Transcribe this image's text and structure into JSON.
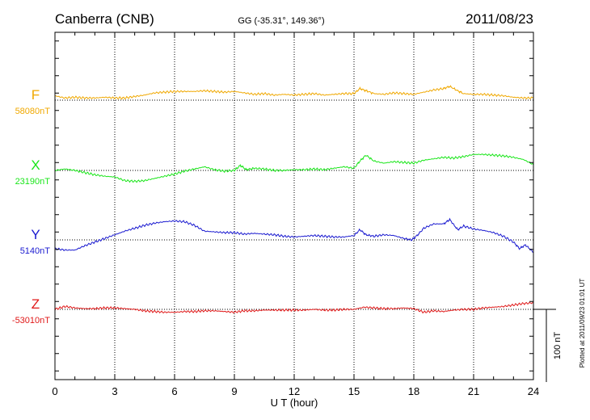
{
  "chart_data": {
    "type": "line",
    "title": "Canberra (CNB)",
    "subtitle": "GG (-35.31°, 149.36°)",
    "date": "2011/08/23",
    "xlabel": "U T (hour)",
    "xlim": [
      0,
      24
    ],
    "xticks": [
      "0",
      "3",
      "6",
      "9",
      "12",
      "15",
      "18",
      "21",
      "24"
    ],
    "scale_label": "100 nT",
    "scale_nT": 100,
    "plotted_note": "Plotted at 2011/09/23 01:01  UT",
    "series": [
      {
        "name": "F",
        "baseline_label": "58080nT",
        "baseline_nT": 58080,
        "color": "#f0a800",
        "x": [
          0,
          0.5,
          1,
          1.5,
          2,
          2.5,
          3,
          3.5,
          4,
          4.5,
          5,
          5.5,
          6,
          6.5,
          7,
          7.5,
          8,
          8.5,
          9,
          9.5,
          10,
          10.5,
          11,
          11.5,
          12,
          12.5,
          13,
          13.5,
          14,
          14.5,
          15,
          15.3,
          15.6,
          16,
          16.5,
          17,
          17.5,
          18,
          18.5,
          19,
          19.5,
          19.8,
          20.2,
          20.5,
          21,
          21.5,
          22,
          22.5,
          23,
          23.5,
          24
        ],
        "values": [
          6,
          3,
          4,
          3,
          3,
          4,
          3,
          3,
          5,
          7,
          10,
          11,
          12,
          12,
          12,
          13,
          12,
          11,
          12,
          10,
          8,
          9,
          7,
          8,
          7,
          8,
          9,
          7,
          8,
          9,
          9,
          16,
          13,
          9,
          8,
          10,
          9,
          8,
          11,
          14,
          16,
          19,
          13,
          9,
          8,
          8,
          7,
          6,
          4,
          3,
          3
        ]
      },
      {
        "name": "X",
        "baseline_label": "23190nT",
        "baseline_nT": 23190,
        "color": "#19e619",
        "x": [
          0,
          0.5,
          1,
          1.5,
          2,
          2.5,
          3,
          3.5,
          4,
          4.5,
          5,
          5.5,
          6,
          6.5,
          7,
          7.5,
          8,
          8.5,
          9,
          9.3,
          9.6,
          10,
          10.5,
          11,
          11.5,
          12,
          12.5,
          13,
          13.5,
          14,
          14.5,
          15,
          15.3,
          15.6,
          16,
          16.5,
          17,
          17.5,
          18,
          18.5,
          19,
          19.5,
          20,
          20.5,
          21,
          21.5,
          22,
          22.5,
          23,
          23.5,
          24
        ],
        "values": [
          0,
          2,
          0,
          -3,
          -6,
          -8,
          -9,
          -14,
          -15,
          -14,
          -11,
          -8,
          -5,
          -1,
          2,
          5,
          1,
          -1,
          0,
          7,
          1,
          3,
          2,
          0,
          0,
          1,
          1,
          2,
          1,
          3,
          5,
          3,
          13,
          21,
          13,
          10,
          12,
          11,
          10,
          14,
          16,
          18,
          17,
          19,
          22,
          22,
          21,
          20,
          18,
          15,
          8
        ]
      },
      {
        "name": "Y",
        "baseline_label": "5140nT",
        "baseline_nT": 5140,
        "color": "#1a1ad0",
        "x": [
          0,
          0.5,
          1,
          1.5,
          2,
          2.5,
          3,
          3.5,
          4,
          4.5,
          5,
          5.5,
          6,
          6.5,
          7,
          7.5,
          8,
          8.5,
          9,
          9.5,
          10,
          10.5,
          11,
          11.5,
          12,
          12.5,
          13,
          13.5,
          14,
          14.5,
          15,
          15.3,
          15.6,
          16,
          16.5,
          17,
          17.5,
          17.9,
          18.2,
          18.5,
          19,
          19.5,
          19.8,
          20.2,
          20.5,
          21,
          21.5,
          22,
          22.5,
          23,
          23.3,
          23.6,
          24
        ],
        "values": [
          -12,
          -14,
          -14,
          -8,
          -3,
          2,
          7,
          12,
          16,
          20,
          23,
          25,
          26,
          25,
          20,
          12,
          11,
          10,
          10,
          8,
          9,
          8,
          7,
          5,
          4,
          5,
          6,
          5,
          4,
          4,
          6,
          14,
          7,
          5,
          7,
          6,
          2,
          0,
          7,
          16,
          22,
          22,
          28,
          14,
          19,
          15,
          13,
          10,
          5,
          -3,
          -12,
          -7,
          -17
        ]
      },
      {
        "name": "Z",
        "baseline_label": "-53010nT",
        "baseline_nT": -53010,
        "color": "#e01818",
        "x": [
          0,
          0.5,
          1,
          1.5,
          2,
          2.5,
          3,
          3.5,
          4,
          4.5,
          5,
          5.5,
          6,
          6.5,
          7,
          7.5,
          8,
          8.5,
          9,
          9.5,
          10,
          10.5,
          11,
          11.5,
          12,
          12.5,
          13,
          13.5,
          14,
          14.5,
          15,
          15.5,
          16,
          16.5,
          17,
          17.5,
          18,
          18.5,
          19,
          19.5,
          20,
          20.5,
          21,
          21.5,
          22,
          22.5,
          23,
          23.5,
          24
        ],
        "values": [
          0,
          4,
          2,
          1,
          1,
          2,
          2,
          1,
          0,
          -2,
          -3,
          -4,
          -4,
          -3,
          -3,
          -2,
          -2,
          -3,
          -4,
          -2,
          -2,
          -1,
          -1,
          -1,
          -1,
          -1,
          0,
          -1,
          -1,
          0,
          0,
          3,
          2,
          1,
          1,
          2,
          1,
          -4,
          -2,
          -3,
          -1,
          0,
          0,
          2,
          3,
          4,
          6,
          8,
          9
        ]
      }
    ]
  }
}
